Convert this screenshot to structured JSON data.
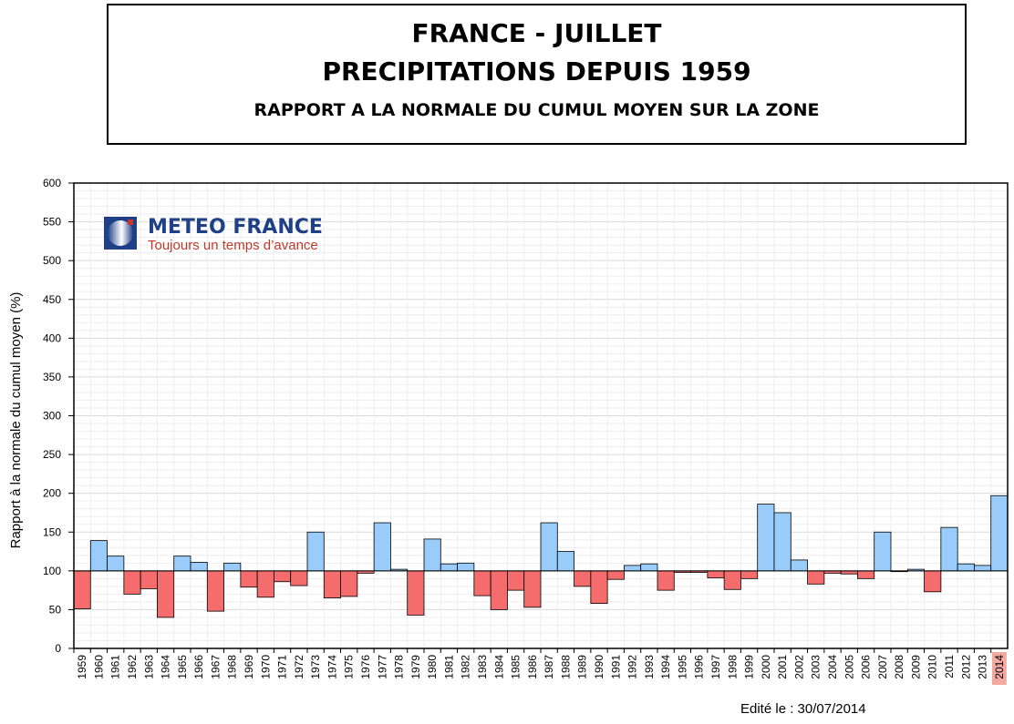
{
  "title": {
    "line1": "FRANCE - JUILLET",
    "line2": "PRECIPITATIONS DEPUIS 1959",
    "line3": "RAPPORT A LA NORMALE DU CUMUL MOYEN SUR LA ZONE"
  },
  "logo": {
    "name": "METEO FRANCE",
    "tagline": "Toujours un temps d’avance"
  },
  "footer": {
    "edited": "Edité le : 30/07/2014"
  },
  "colors": {
    "above": "#99ccfa",
    "below": "#f46c6c",
    "highlight_label_bg": "#f4a9a0"
  },
  "chart_data": {
    "type": "bar",
    "ylabel": "Rapport à la normale du cumul moyen (%)",
    "xlabel": "",
    "ylim": [
      0,
      600
    ],
    "yticks": [
      0,
      50,
      100,
      150,
      200,
      250,
      300,
      350,
      400,
      450,
      500,
      550,
      600
    ],
    "baseline": 100,
    "grid": true,
    "highlighted_category": "2014",
    "categories": [
      "1959",
      "1960",
      "1961",
      "1962",
      "1963",
      "1964",
      "1965",
      "1966",
      "1967",
      "1968",
      "1969",
      "1970",
      "1971",
      "1972",
      "1973",
      "1974",
      "1975",
      "1976",
      "1977",
      "1978",
      "1979",
      "1980",
      "1981",
      "1982",
      "1983",
      "1984",
      "1985",
      "1986",
      "1987",
      "1988",
      "1989",
      "1990",
      "1991",
      "1992",
      "1993",
      "1994",
      "1995",
      "1996",
      "1997",
      "1998",
      "1999",
      "2000",
      "2001",
      "2002",
      "2003",
      "2004",
      "2005",
      "2006",
      "2007",
      "2008",
      "2009",
      "2010",
      "2011",
      "2012",
      "2013",
      "2014"
    ],
    "values": [
      51,
      139,
      119,
      70,
      77,
      40,
      119,
      111,
      48,
      110,
      79,
      66,
      86,
      81,
      150,
      65,
      67,
      97,
      162,
      102,
      43,
      141,
      109,
      110,
      68,
      50,
      75,
      53,
      162,
      125,
      80,
      58,
      89,
      107,
      109,
      75,
      98,
      98,
      91,
      76,
      90,
      186,
      175,
      114,
      83,
      97,
      96,
      90,
      150,
      99,
      102,
      73,
      156,
      109,
      107,
      197
    ]
  }
}
